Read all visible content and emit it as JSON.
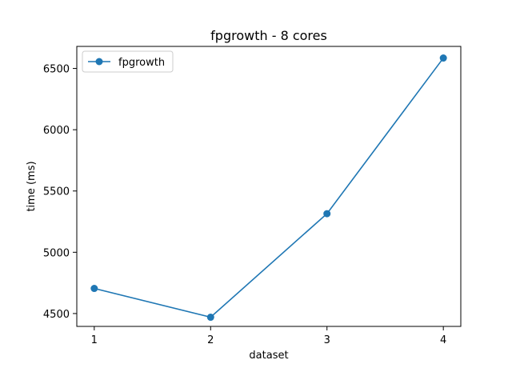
{
  "chart_data": {
    "type": "line",
    "title": "fpgrowth - 8 cores",
    "xlabel": "dataset",
    "ylabel": "time (ms)",
    "x": [
      1,
      2,
      3,
      4
    ],
    "x_ticks": [
      "1",
      "2",
      "3",
      "4"
    ],
    "y_ticks": [
      "4500",
      "5000",
      "5500",
      "6000",
      "6500"
    ],
    "ylim": [
      4395,
      6680
    ],
    "xlim": [
      0.85,
      4.15
    ],
    "grid": false,
    "legend_position": "top-left",
    "series": [
      {
        "name": "fpgrowth",
        "values": [
          4705,
          4470,
          5315,
          6585
        ],
        "color": "#1f77b4",
        "marker": "circle"
      }
    ]
  }
}
